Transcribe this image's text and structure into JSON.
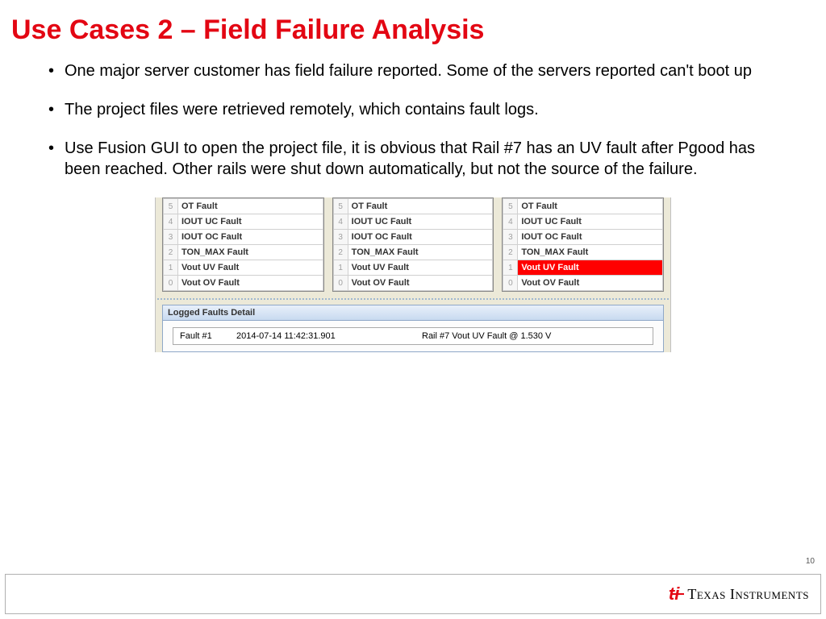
{
  "title": "Use Cases 2 – Field Failure Analysis",
  "bullets": [
    "One major server customer has field failure reported. Some of the servers reported can't boot up",
    "The project files were retrieved remotely, which contains fault logs.",
    "Use Fusion GUI to open the project file, it is obvious that Rail #7 has an UV fault after Pgood has been reached. Other rails were shut down automatically, but not the source of the failure."
  ],
  "fault_labels": {
    "r5": "OT Fault",
    "r4": "IOUT UC Fault",
    "r3": "IOUT OC Fault",
    "r2": "TON_MAX Fault",
    "r1": "Vout UV Fault",
    "r0": "Vout OV Fault"
  },
  "panels": [
    {
      "highlight_row": null
    },
    {
      "highlight_row": null
    },
    {
      "highlight_row": 1
    }
  ],
  "detail": {
    "header": "Logged Faults Detail",
    "col1": "Fault #1",
    "col2": "2014-07-14 11:42:31.901",
    "col3": "Rail #7 Vout UV Fault @ 1.530 V"
  },
  "page_number": "10",
  "footer": {
    "brand_prefix": "T",
    "brand_rest": "exas ",
    "brand_prefix2": "I",
    "brand_rest2": "nstruments"
  },
  "colors": {
    "title": "#e30613",
    "highlight_bg": "#ff0000",
    "highlight_fg": "#ffffff",
    "panel_bg": "#ece9d8"
  }
}
